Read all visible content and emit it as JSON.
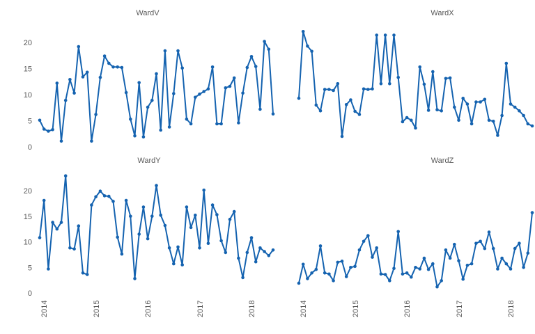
{
  "figure": {
    "background": "#ffffff",
    "label_color": "#595959",
    "line_color": "#1563b0",
    "marker_color": "#1563b0"
  },
  "axes": {
    "x_tick_labels": [
      "2014",
      "2015",
      "2016",
      "2017",
      "2018"
    ],
    "y_tick_labels": [
      "0",
      "5",
      "10",
      "15",
      "20"
    ]
  },
  "chart_data": [
    {
      "type": "line",
      "title": "WardV",
      "series_name": "WardV",
      "x_start": "2013-12",
      "x_interval": "monthly",
      "x_tick_labels": [
        "2014",
        "2015",
        "2016",
        "2017",
        "2018"
      ],
      "y_tick_labels": [
        "0",
        "5",
        "10",
        "15",
        "20"
      ],
      "ylim": [
        0,
        23
      ],
      "grid": "off",
      "marker": "circle",
      "legend": "none",
      "values": [
        5.1,
        3.4,
        3.0,
        3.3,
        12.2,
        1.1,
        8.9,
        12.9,
        10.3,
        19.2,
        13.4,
        14.3,
        1.1,
        6.2,
        13.3,
        17.4,
        16.0,
        15.3,
        15.3,
        15.2,
        10.4,
        5.3,
        2.1,
        12.3,
        1.9,
        7.6,
        8.9,
        14.0,
        3.2,
        18.4,
        3.8,
        10.2,
        18.4,
        15.1,
        5.3,
        4.4,
        9.5,
        10.1,
        10.6,
        11.1,
        15.3,
        4.4,
        4.4,
        11.3,
        11.6,
        13.2,
        4.6,
        10.3,
        15.2,
        17.3,
        15.4,
        7.2,
        20.2,
        18.7,
        6.3
      ]
    },
    {
      "type": "line",
      "title": "WardX",
      "series_name": "WardX",
      "x_start": "2013-12",
      "x_interval": "monthly",
      "x_tick_labels": [
        "2014",
        "2015",
        "2016",
        "2017",
        "2018"
      ],
      "y_tick_labels": [],
      "ylim": [
        0,
        23
      ],
      "grid": "off",
      "marker": "circle",
      "legend": "none",
      "values": [
        9.3,
        22.1,
        19.3,
        18.3,
        8.0,
        6.9,
        11.0,
        11.0,
        10.8,
        12.1,
        2.0,
        8.1,
        9.0,
        6.8,
        6.2,
        11.1,
        11.0,
        11.1,
        21.4,
        12.1,
        21.4,
        12.1,
        21.4,
        13.3,
        4.8,
        5.6,
        5.1,
        3.6,
        15.3,
        12.0,
        7.0,
        14.4,
        7.1,
        6.9,
        13.1,
        13.2,
        7.6,
        5.1,
        9.3,
        8.2,
        4.4,
        8.6,
        8.6,
        9.1,
        5.1,
        4.9,
        2.2,
        6.0,
        16.0,
        8.2,
        7.6,
        6.9,
        6.0,
        4.4,
        4.0
      ]
    },
    {
      "type": "line",
      "title": "WardY",
      "series_name": "WardY",
      "x_start": "2013-12",
      "x_interval": "monthly",
      "x_tick_labels": [
        "2014",
        "2015",
        "2016",
        "2017",
        "2018"
      ],
      "y_tick_labels": [
        "0",
        "5",
        "10",
        "15",
        "20"
      ],
      "ylim": [
        0,
        23
      ],
      "grid": "off",
      "marker": "circle",
      "legend": "none",
      "values": [
        10.8,
        18.1,
        4.7,
        13.8,
        12.5,
        13.8,
        22.9,
        8.8,
        8.6,
        13.1,
        3.9,
        3.6,
        17.2,
        18.8,
        19.9,
        19.0,
        18.9,
        17.9,
        10.9,
        7.6,
        18.1,
        15.0,
        2.8,
        11.5,
        16.8,
        10.6,
        15.0,
        21.0,
        15.2,
        13.2,
        8.8,
        5.7,
        9.0,
        5.5,
        16.8,
        12.8,
        15.2,
        8.8,
        20.1,
        9.7,
        17.2,
        15.3,
        10.2,
        7.9,
        14.4,
        15.9,
        6.8,
        3.0,
        7.9,
        10.8,
        6.1,
        8.8,
        8.1,
        7.3,
        8.4
      ]
    },
    {
      "type": "line",
      "title": "WardZ",
      "series_name": "WardZ",
      "x_start": "2013-12",
      "x_interval": "monthly",
      "x_tick_labels": [
        "2014",
        "2015",
        "2016",
        "2017",
        "2018"
      ],
      "y_tick_labels": [],
      "ylim": [
        0,
        23
      ],
      "grid": "off",
      "marker": "circle",
      "legend": "none",
      "values": [
        1.9,
        5.6,
        2.8,
        3.9,
        4.6,
        9.2,
        3.9,
        3.7,
        2.4,
        6.0,
        6.2,
        3.2,
        5.0,
        5.2,
        8.4,
        10.1,
        11.2,
        7.0,
        8.8,
        3.7,
        3.6,
        2.4,
        4.8,
        12.0,
        3.7,
        3.9,
        3.1,
        5.0,
        4.7,
        6.8,
        4.6,
        5.7,
        1.2,
        2.4,
        8.4,
        6.8,
        9.5,
        6.3,
        2.7,
        5.4,
        5.7,
        9.7,
        10.1,
        8.7,
        11.9,
        8.7,
        4.7,
        6.8,
        5.7,
        4.7,
        8.7,
        9.7,
        5.0,
        7.8,
        15.7
      ]
    }
  ]
}
